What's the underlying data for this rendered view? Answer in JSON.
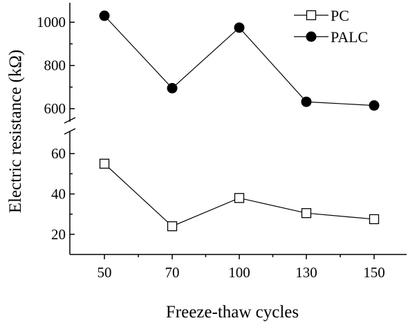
{
  "chart_data": {
    "type": "line",
    "title": "",
    "xlabel": "Freeze-thaw cycles",
    "ylabel": "Electric resistance (kΩ)",
    "categories": [
      "50",
      "70",
      "100",
      "130",
      "150"
    ],
    "y_axis_break": true,
    "y_segments": [
      {
        "range": [
          10,
          70
        ],
        "ticks": [
          "20",
          "40",
          "60"
        ]
      },
      {
        "range": [
          540,
          1090
        ],
        "ticks": [
          "600",
          "800",
          "1000"
        ]
      }
    ],
    "series": [
      {
        "name": "PC",
        "marker": "open-square",
        "values": [
          55,
          24,
          38,
          30.5,
          27.5
        ]
      },
      {
        "name": "PALC",
        "marker": "filled-circle",
        "values": [
          1030,
          695,
          975,
          632,
          615
        ]
      }
    ],
    "legend_position": "top-right",
    "grid": false
  }
}
